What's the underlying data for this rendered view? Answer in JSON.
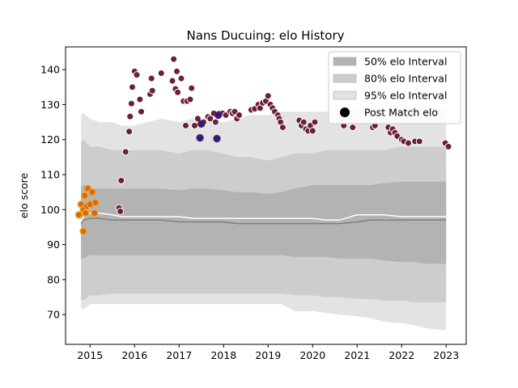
{
  "chart_data": {
    "type": "scatter",
    "title": "Nans Ducuing: elo History",
    "xlabel": "",
    "ylabel": "elo score",
    "xlim": [
      2014.45,
      2023.45
    ],
    "ylim": [
      61.5,
      146.5
    ],
    "xticks": [
      2015,
      2016,
      2017,
      2018,
      2019,
      2020,
      2021,
      2022,
      2023
    ],
    "xtick_labels": [
      "2015",
      "2016",
      "2017",
      "2018",
      "2019",
      "2020",
      "2021",
      "2022",
      "2023"
    ],
    "yticks": [
      70,
      80,
      90,
      100,
      110,
      120,
      130,
      140
    ],
    "ytick_labels": [
      "70",
      "80",
      "90",
      "100",
      "110",
      "120",
      "130",
      "140"
    ],
    "grid": false,
    "legend_position": "top-right",
    "legend": [
      {
        "label": "50% elo Interval",
        "kind": "band",
        "color": "#b0b0b0"
      },
      {
        "label": "80% elo Interval",
        "kind": "band",
        "color": "#c8c8c8"
      },
      {
        "label": "95% elo Interval",
        "kind": "band",
        "color": "#e2e2e2"
      },
      {
        "label": "Post Match elo",
        "kind": "marker",
        "color": "#000000"
      }
    ],
    "colors": {
      "band50": "#b3b3b3",
      "band80": "#cdcdcd",
      "band95": "#e3e3e3",
      "median_line": "#808080",
      "mean_line": "#ffffff",
      "point_main": "#6b1f38",
      "point_early": "#f5a623",
      "point_early_edge": "#d2691e",
      "point_highlight": "#1a1aa8"
    },
    "bands": {
      "x": [
        2014.8,
        2014.85,
        2015.0,
        2015.2,
        2015.5,
        2015.7,
        2016.0,
        2016.3,
        2016.6,
        2017.0,
        2017.3,
        2017.6,
        2018.0,
        2018.3,
        2018.6,
        2019.0,
        2019.3,
        2019.6,
        2020.0,
        2020.3,
        2020.6,
        2021.0,
        2021.3,
        2021.6,
        2022.0,
        2022.3,
        2022.6,
        2023.0
      ],
      "p95_upper": [
        127,
        127.5,
        126,
        125,
        125,
        124,
        124,
        125,
        126,
        125,
        126,
        126,
        125,
        126,
        127,
        127,
        128,
        128,
        128,
        128,
        128,
        129,
        129,
        129,
        129,
        129,
        129,
        129
      ],
      "p80_upper": [
        119.5,
        120,
        118,
        118,
        117,
        117,
        117,
        117,
        117,
        116,
        117,
        117,
        116,
        115,
        115,
        114,
        115,
        116,
        116,
        117,
        117,
        117,
        117,
        117,
        118,
        118,
        118,
        118
      ],
      "p50_upper": [
        106.5,
        107,
        106,
        106,
        106,
        106,
        106,
        106,
        106,
        105.5,
        106,
        106,
        105.5,
        105,
        105,
        104.5,
        105,
        106,
        107,
        107,
        107,
        107,
        107,
        107.5,
        108,
        108,
        108,
        108
      ],
      "p50_lower": [
        86,
        86,
        87,
        87,
        87,
        87,
        87,
        87,
        87,
        87,
        87,
        87,
        87,
        87,
        87,
        87,
        87,
        86.5,
        86.5,
        86.5,
        86,
        86,
        86,
        85.5,
        85,
        85,
        84.5,
        84.5
      ],
      "p80_lower": [
        74.5,
        74,
        75.5,
        75.5,
        76,
        76,
        76,
        76,
        76,
        76,
        76,
        76,
        76,
        76,
        76,
        76,
        76,
        75.5,
        75.5,
        75,
        75,
        74.5,
        74.5,
        74,
        74,
        73.5,
        73.5,
        73.5
      ],
      "p95_lower": [
        72,
        71.5,
        73,
        73,
        73,
        73,
        73,
        73,
        73,
        73,
        73,
        73,
        73,
        73,
        73,
        73,
        73,
        71,
        71,
        70.5,
        70,
        69.5,
        69,
        68,
        67.5,
        67,
        66,
        65.5
      ]
    },
    "median_line": {
      "x": [
        2014.8,
        2014.85,
        2015.0,
        2015.2,
        2015.5,
        2015.7,
        2016.0,
        2016.3,
        2016.6,
        2017.0,
        2017.3,
        2017.6,
        2018.0,
        2018.3,
        2018.6,
        2019.0,
        2019.3,
        2019.6,
        2020.0,
        2020.3,
        2020.6,
        2021.0,
        2021.3,
        2021.6,
        2022.0,
        2022.3,
        2022.6,
        2023.0
      ],
      "y": [
        96,
        97,
        97.5,
        97.5,
        97,
        97,
        97,
        97,
        97,
        96.5,
        96.5,
        96.5,
        96.5,
        96,
        96,
        96,
        96,
        96,
        96,
        96,
        96,
        96.5,
        97,
        97,
        97,
        97,
        97,
        97
      ]
    },
    "mean_line": {
      "x": [
        2014.8,
        2014.85,
        2015.0,
        2015.2,
        2015.5,
        2015.7,
        2016.0,
        2016.3,
        2016.6,
        2017.0,
        2017.3,
        2017.6,
        2018.0,
        2018.3,
        2018.6,
        2019.0,
        2019.3,
        2019.6,
        2020.0,
        2020.3,
        2020.6,
        2021.0,
        2021.3,
        2021.6,
        2022.0,
        2022.3,
        2022.6,
        2023.0
      ],
      "y": [
        96.5,
        98,
        99,
        99,
        98.5,
        98,
        98,
        98,
        98,
        98,
        97.5,
        97.5,
        97.5,
        97.5,
        97.5,
        97.5,
        97.5,
        97.5,
        97.5,
        97,
        97,
        98.5,
        98.5,
        98.5,
        98,
        98,
        98,
        98
      ]
    },
    "points_early": [
      {
        "x": 2014.75,
        "y": 98.5
      },
      {
        "x": 2014.8,
        "y": 101.5
      },
      {
        "x": 2014.85,
        "y": 100
      },
      {
        "x": 2014.88,
        "y": 104
      },
      {
        "x": 2014.9,
        "y": 99
      },
      {
        "x": 2014.93,
        "y": 101
      },
      {
        "x": 2014.95,
        "y": 106
      },
      {
        "x": 2015.0,
        "y": 101.5
      },
      {
        "x": 2015.05,
        "y": 105
      },
      {
        "x": 2015.1,
        "y": 99
      },
      {
        "x": 2015.12,
        "y": 102
      },
      {
        "x": 2014.85,
        "y": 93.8
      }
    ],
    "points_highlight": [
      {
        "x": 2017.47,
        "y": 120.5
      },
      {
        "x": 2017.5,
        "y": 124.5
      },
      {
        "x": 2017.85,
        "y": 120.3
      },
      {
        "x": 2017.88,
        "y": 127
      }
    ],
    "points": [
      {
        "x": 2015.65,
        "y": 100.5
      },
      {
        "x": 2015.68,
        "y": 99.5
      },
      {
        "x": 2015.7,
        "y": 108.3
      },
      {
        "x": 2015.8,
        "y": 116.5
      },
      {
        "x": 2015.88,
        "y": 122.3
      },
      {
        "x": 2015.9,
        "y": 126.6
      },
      {
        "x": 2015.93,
        "y": 130.3
      },
      {
        "x": 2015.95,
        "y": 135
      },
      {
        "x": 2016.0,
        "y": 139.5
      },
      {
        "x": 2016.05,
        "y": 138.5
      },
      {
        "x": 2016.12,
        "y": 131.5
      },
      {
        "x": 2016.15,
        "y": 128
      },
      {
        "x": 2016.35,
        "y": 133
      },
      {
        "x": 2016.38,
        "y": 137.5
      },
      {
        "x": 2016.4,
        "y": 134
      },
      {
        "x": 2016.6,
        "y": 139
      },
      {
        "x": 2016.85,
        "y": 136.8
      },
      {
        "x": 2016.88,
        "y": 143
      },
      {
        "x": 2016.92,
        "y": 134.5
      },
      {
        "x": 2016.95,
        "y": 139.5
      },
      {
        "x": 2016.97,
        "y": 133.5
      },
      {
        "x": 2017.05,
        "y": 137.5
      },
      {
        "x": 2017.1,
        "y": 131
      },
      {
        "x": 2017.15,
        "y": 124
      },
      {
        "x": 2017.18,
        "y": 131
      },
      {
        "x": 2017.25,
        "y": 131.5
      },
      {
        "x": 2017.28,
        "y": 134.7
      },
      {
        "x": 2017.35,
        "y": 124
      },
      {
        "x": 2017.42,
        "y": 126
      },
      {
        "x": 2017.55,
        "y": 125
      },
      {
        "x": 2017.65,
        "y": 126.5
      },
      {
        "x": 2017.7,
        "y": 126
      },
      {
        "x": 2017.78,
        "y": 127.5
      },
      {
        "x": 2017.82,
        "y": 125
      },
      {
        "x": 2017.92,
        "y": 127.5
      },
      {
        "x": 2017.98,
        "y": 127.5
      },
      {
        "x": 2018.05,
        "y": 127
      },
      {
        "x": 2018.15,
        "y": 128
      },
      {
        "x": 2018.2,
        "y": 127.5
      },
      {
        "x": 2018.25,
        "y": 128
      },
      {
        "x": 2018.3,
        "y": 126
      },
      {
        "x": 2018.35,
        "y": 127
      },
      {
        "x": 2018.62,
        "y": 128.5
      },
      {
        "x": 2018.7,
        "y": 128.8
      },
      {
        "x": 2018.78,
        "y": 130
      },
      {
        "x": 2018.82,
        "y": 129
      },
      {
        "x": 2018.88,
        "y": 130.5
      },
      {
        "x": 2018.95,
        "y": 131
      },
      {
        "x": 2019.0,
        "y": 132.5
      },
      {
        "x": 2019.05,
        "y": 130
      },
      {
        "x": 2019.1,
        "y": 129
      },
      {
        "x": 2019.15,
        "y": 128
      },
      {
        "x": 2019.22,
        "y": 127
      },
      {
        "x": 2019.25,
        "y": 126
      },
      {
        "x": 2019.28,
        "y": 125
      },
      {
        "x": 2019.33,
        "y": 123.5
      },
      {
        "x": 2019.7,
        "y": 125.5
      },
      {
        "x": 2019.75,
        "y": 124
      },
      {
        "x": 2019.8,
        "y": 125
      },
      {
        "x": 2019.85,
        "y": 123
      },
      {
        "x": 2019.9,
        "y": 122.5
      },
      {
        "x": 2019.95,
        "y": 124
      },
      {
        "x": 2020.0,
        "y": 122.5
      },
      {
        "x": 2020.05,
        "y": 125
      },
      {
        "x": 2020.7,
        "y": 124
      },
      {
        "x": 2020.9,
        "y": 123.5
      },
      {
        "x": 2021.35,
        "y": 123.5
      },
      {
        "x": 2021.4,
        "y": 124
      },
      {
        "x": 2021.7,
        "y": 123.5
      },
      {
        "x": 2021.75,
        "y": 122
      },
      {
        "x": 2021.8,
        "y": 123
      },
      {
        "x": 2021.85,
        "y": 122
      },
      {
        "x": 2021.9,
        "y": 121
      },
      {
        "x": 2022.0,
        "y": 120
      },
      {
        "x": 2022.05,
        "y": 119.5
      },
      {
        "x": 2022.15,
        "y": 119
      },
      {
        "x": 2022.3,
        "y": 119.5
      },
      {
        "x": 2022.4,
        "y": 119.5
      },
      {
        "x": 2022.98,
        "y": 119
      },
      {
        "x": 2023.05,
        "y": 118
      }
    ]
  }
}
